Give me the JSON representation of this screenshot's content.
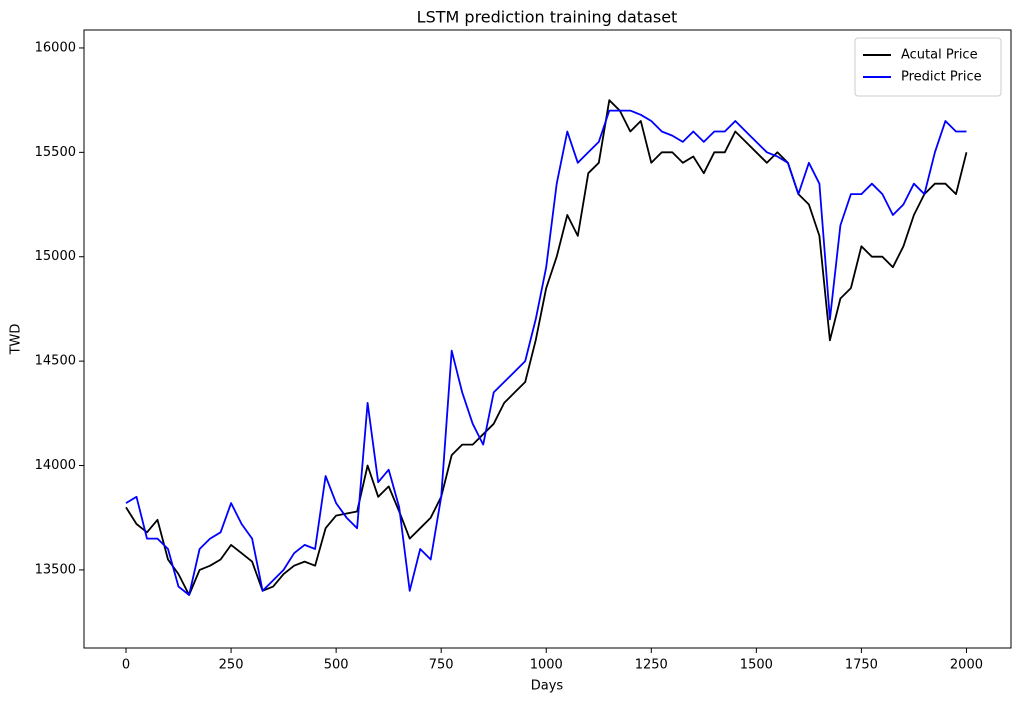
{
  "chart_data": {
    "type": "line",
    "title": "LSTM prediction training dataset",
    "x_label": "Days",
    "y_label": "TWD",
    "x": [
      0,
      25,
      50,
      75,
      100,
      125,
      150,
      175,
      200,
      225,
      250,
      275,
      300,
      325,
      350,
      375,
      400,
      425,
      450,
      475,
      500,
      525,
      550,
      575,
      600,
      625,
      650,
      675,
      700,
      725,
      750,
      775,
      800,
      825,
      850,
      875,
      900,
      925,
      950,
      975,
      1000,
      1025,
      1050,
      1075,
      1100,
      1125,
      1150,
      1175,
      1200,
      1225,
      1250,
      1275,
      1300,
      1325,
      1350,
      1375,
      1400,
      1425,
      1450,
      1475,
      1500,
      1525,
      1550,
      1575,
      1600,
      1625,
      1650,
      1675,
      1700,
      1725,
      1750,
      1775,
      1800,
      1825,
      1850,
      1875,
      1900,
      1925,
      1950,
      1975,
      2000
    ],
    "series": [
      {
        "name": "Acutal Price",
        "color": "#000000",
        "values": [
          13800,
          13720,
          13680,
          13740,
          13550,
          13480,
          13380,
          13500,
          13520,
          13550,
          13620,
          13580,
          13540,
          13400,
          13420,
          13480,
          13520,
          13540,
          13520,
          13700,
          13760,
          13770,
          13780,
          14000,
          13850,
          13900,
          13780,
          13650,
          13700,
          13750,
          13850,
          14050,
          14100,
          14100,
          14150,
          14200,
          14300,
          14350,
          14400,
          14600,
          14850,
          15000,
          15200,
          15100,
          15400,
          15450,
          15750,
          15700,
          15600,
          15650,
          15450,
          15500,
          15500,
          15450,
          15480,
          15400,
          15500,
          15500,
          15600,
          15550,
          15500,
          15450,
          15500,
          15450,
          15300,
          15250,
          15100,
          14600,
          14800,
          14850,
          15050,
          15000,
          15000,
          14950,
          15050,
          15200,
          15300,
          15350,
          15350,
          15300,
          15500
        ]
      },
      {
        "name": "Predict Price",
        "color": "#0000ff",
        "values": [
          13820,
          13850,
          13650,
          13650,
          13600,
          13420,
          13380,
          13600,
          13650,
          13680,
          13820,
          13720,
          13650,
          13400,
          13450,
          13500,
          13580,
          13620,
          13600,
          13950,
          13820,
          13750,
          13700,
          14300,
          13920,
          13980,
          13800,
          13400,
          13600,
          13550,
          13850,
          14550,
          14350,
          14200,
          14100,
          14350,
          14400,
          14450,
          14500,
          14700,
          14950,
          15350,
          15600,
          15450,
          15500,
          15550,
          15700,
          15700,
          15700,
          15680,
          15650,
          15600,
          15580,
          15550,
          15600,
          15550,
          15600,
          15600,
          15650,
          15600,
          15550,
          15500,
          15480,
          15450,
          15300,
          15450,
          15350,
          14700,
          15150,
          15300,
          15300,
          15350,
          15300,
          15200,
          15250,
          15350,
          15300,
          15500,
          15650,
          15600,
          15600
        ]
      }
    ],
    "xlim": [
      -100,
      2106
    ],
    "ylim": [
      13126,
      16086
    ],
    "xticks": [
      0,
      250,
      500,
      750,
      1000,
      1250,
      1500,
      1750,
      2000
    ],
    "yticks": [
      13500,
      14000,
      14500,
      15000,
      15500,
      16000
    ],
    "legend": "upper right"
  }
}
